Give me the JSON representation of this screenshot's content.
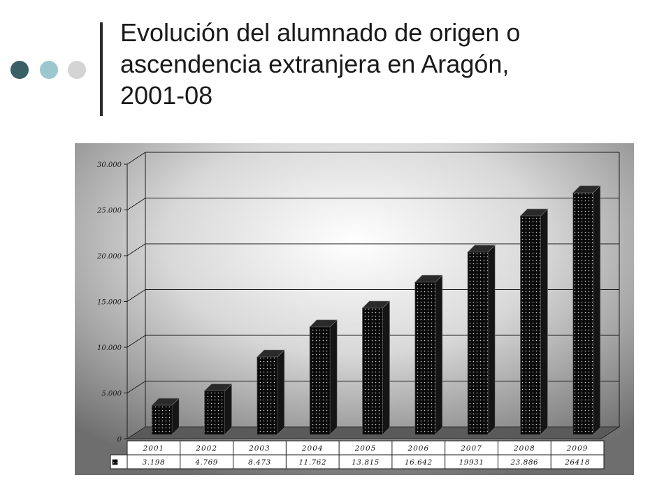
{
  "slide": {
    "title_lines": [
      "Evolución del alumnado de origen o",
      "ascendencia extranjera en Aragón,",
      "2001-08"
    ],
    "bullet_colors": [
      "#3b5f66",
      "#9bc8cf",
      "#d4d4d4"
    ]
  },
  "chart_data": {
    "type": "bar",
    "title": "Evolución del alumnado de origen o ascendencia extranjera en Aragón, 2001-08",
    "categories": [
      "2001",
      "2002",
      "2003",
      "2004",
      "2005",
      "2006",
      "2007",
      "2008",
      "2009"
    ],
    "values": [
      3198,
      4769,
      8473,
      11762,
      13815,
      16642,
      19931,
      23886,
      26418
    ],
    "value_labels": [
      "3.198",
      "4.769",
      "8.473",
      "11.762",
      "13.815",
      "16.642",
      "19931",
      "23.886",
      "26418"
    ],
    "ylim": [
      0,
      30000
    ],
    "yticks": [
      0,
      5000,
      10000,
      15000,
      20000,
      25000,
      30000
    ],
    "ytick_labels": [
      "0",
      "5.000",
      "10.000",
      "15.000",
      "20.000",
      "25.000",
      "30.000"
    ],
    "grid": true,
    "legend": "data-table-below",
    "xlabel": "",
    "ylabel": ""
  }
}
